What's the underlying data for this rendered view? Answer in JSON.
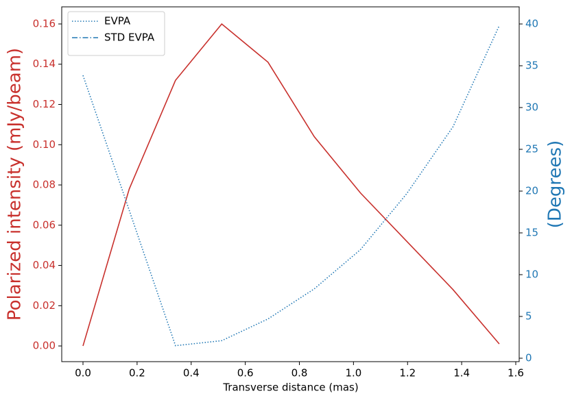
{
  "chart_data": {
    "type": "line",
    "x_label": "Transverse distance (mas)",
    "y_label": "Polarized intensity (mJy/beam)",
    "y2_label": "(Degrees)",
    "x": [
      0,
      0.171,
      0.342,
      0.513,
      0.684,
      0.855,
      1.026,
      1.197,
      1.368,
      1.539
    ],
    "series": [
      {
        "name": "Polarized intensity",
        "color": "#c8302c",
        "style": "solid",
        "axis": "y",
        "values": [
          0.0,
          0.078,
          0.132,
          0.16,
          0.141,
          0.104,
          0.076,
          0.052,
          0.028,
          0.001
        ]
      },
      {
        "name": "EVPA",
        "color": "#1f77b4",
        "style": "dotted",
        "axis": "y2",
        "legend": true,
        "values": [
          33.85,
          17.7,
          1.5,
          2.1,
          4.7,
          8.3,
          13.0,
          19.7,
          27.7,
          39.8
        ]
      },
      {
        "name": "STD EVPA",
        "color": "#1f77b4",
        "style": "dashdot",
        "axis": "y2",
        "legend": true,
        "values": [
          null,
          null,
          null,
          null,
          null,
          null,
          null,
          null,
          null,
          null
        ]
      }
    ],
    "xlim": [
      -0.0786,
      1.6127
    ],
    "xticks": [
      {
        "value": 0,
        "label": "0.0"
      },
      0.2,
      0.4,
      0.6,
      0.8,
      {
        "value": 1,
        "label": "1.0"
      },
      1.2,
      1.4,
      1.6
    ],
    "ylim": [
      -0.0078,
      0.1685
    ],
    "yticks": [
      {
        "value": 0,
        "label": "0.00"
      },
      0.02,
      0.04,
      0.06,
      0.08,
      {
        "value": 0.1,
        "label": "0.10"
      },
      0.12,
      0.14,
      0.16
    ],
    "y2lim": [
      -0.41,
      42.05
    ],
    "y2ticks": [
      0,
      5,
      10,
      15,
      20,
      25,
      30,
      35,
      40
    ],
    "legend": "upper left"
  }
}
